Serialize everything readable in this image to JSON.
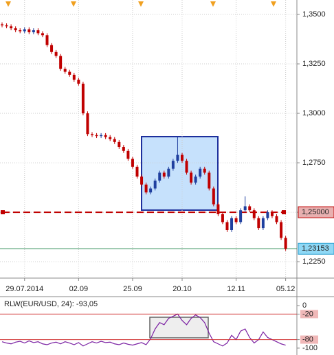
{
  "chart_data": [
    {
      "type": "candlestick",
      "up_color": "#1f3f9f",
      "down_color": "#c00000",
      "grid": true,
      "open": [
        1.345,
        1.3445,
        1.344,
        1.343,
        1.342,
        1.3415,
        1.3425,
        1.341,
        1.342,
        1.3405,
        1.3395,
        1.3345,
        1.331,
        1.329,
        1.3225,
        1.321,
        1.3195,
        1.317,
        1.315,
        1.3,
        1.2895,
        1.289,
        1.2885,
        1.289,
        1.288,
        1.287,
        1.2855,
        1.283,
        1.281,
        1.277,
        1.273,
        1.268,
        1.264,
        1.26,
        1.262,
        1.266,
        1.27,
        1.268,
        1.272,
        1.276,
        1.279,
        1.276,
        1.27,
        1.265,
        1.268,
        1.272,
        1.27,
        1.262,
        1.254,
        1.249,
        1.245,
        1.241,
        1.247,
        1.245,
        1.251,
        1.253,
        1.251,
        1.247,
        1.242,
        1.247,
        1.25,
        1.248,
        1.245,
        1.237
      ],
      "high": [
        1.346,
        1.3455,
        1.345,
        1.344,
        1.343,
        1.3435,
        1.3435,
        1.343,
        1.343,
        1.3415,
        1.3405,
        1.3355,
        1.332,
        1.33,
        1.3235,
        1.322,
        1.3205,
        1.318,
        1.316,
        1.301,
        1.2905,
        1.29,
        1.29,
        1.29,
        1.289,
        1.288,
        1.2865,
        1.284,
        1.282,
        1.278,
        1.274,
        1.269,
        1.265,
        1.263,
        1.267,
        1.271,
        1.271,
        1.273,
        1.277,
        1.288,
        1.28,
        1.277,
        1.271,
        1.269,
        1.273,
        1.273,
        1.271,
        1.263,
        1.255,
        1.25,
        1.246,
        1.248,
        1.248,
        1.252,
        1.258,
        1.254,
        1.252,
        1.248,
        1.248,
        1.251,
        1.251,
        1.249,
        1.246,
        1.238
      ],
      "low": [
        1.3435,
        1.343,
        1.342,
        1.341,
        1.3405,
        1.3405,
        1.34,
        1.34,
        1.3395,
        1.3385,
        1.3335,
        1.33,
        1.328,
        1.3215,
        1.32,
        1.3185,
        1.316,
        1.314,
        1.299,
        1.2885,
        1.288,
        1.2875,
        1.2875,
        1.287,
        1.286,
        1.2845,
        1.282,
        1.28,
        1.276,
        1.272,
        1.267,
        1.263,
        1.259,
        1.259,
        1.261,
        1.265,
        1.267,
        1.267,
        1.271,
        1.275,
        1.275,
        1.269,
        1.264,
        1.264,
        1.267,
        1.269,
        1.261,
        1.253,
        1.248,
        1.244,
        1.24,
        1.24,
        1.244,
        1.244,
        1.25,
        1.25,
        1.246,
        1.241,
        1.241,
        1.246,
        1.247,
        1.244,
        1.236,
        1.2305
      ],
      "close": [
        1.3445,
        1.344,
        1.343,
        1.342,
        1.3415,
        1.3425,
        1.341,
        1.342,
        1.3405,
        1.3395,
        1.3345,
        1.331,
        1.329,
        1.3225,
        1.321,
        1.3195,
        1.317,
        1.315,
        1.3,
        1.2895,
        1.289,
        1.2885,
        1.289,
        1.288,
        1.287,
        1.2855,
        1.283,
        1.281,
        1.277,
        1.273,
        1.268,
        1.264,
        1.26,
        1.262,
        1.266,
        1.27,
        1.268,
        1.272,
        1.276,
        1.279,
        1.276,
        1.27,
        1.265,
        1.268,
        1.272,
        1.27,
        1.262,
        1.254,
        1.249,
        1.245,
        1.241,
        1.247,
        1.245,
        1.251,
        1.253,
        1.251,
        1.247,
        1.242,
        1.247,
        1.25,
        1.248,
        1.245,
        1.237,
        1.2315
      ],
      "xlim": [
        -0.46,
        65.5
      ],
      "xticks": [
        {
          "value": 5,
          "label": "29.07.2014"
        },
        {
          "value": 17,
          "label": "02.09"
        },
        {
          "value": 29,
          "label": "25.09"
        },
        {
          "value": 40,
          "label": "20.10"
        },
        {
          "value": 52,
          "label": "12.11"
        },
        {
          "value": 63,
          "label": "05.12"
        }
      ],
      "ylim": [
        1.2167,
        1.3573
      ],
      "yticks": [
        {
          "value": 1.35,
          "label": "1,3500"
        },
        {
          "value": 1.325,
          "label": "1,3250"
        },
        {
          "value": 1.3,
          "label": "1,3000"
        },
        {
          "value": 1.275,
          "label": "1,2750"
        },
        {
          "value": 1.25,
          "label": "1,2500"
        },
        {
          "value": 1.225,
          "label": "1,2250"
        }
      ],
      "level_line": {
        "value": 1.25,
        "label": "1,25000",
        "color": "#c00000"
      },
      "last_price": {
        "value": 1.23153,
        "label": "1,23153",
        "color": "#2e8b57"
      }
    },
    {
      "type": "line",
      "title": "RLW(EUR/USD, 24): -93,05",
      "color": "#7a1fa2",
      "values": [
        -85,
        -88,
        -90,
        -86,
        -84,
        -88,
        -83,
        -87,
        -85,
        -90,
        -92,
        -88,
        -86,
        -90,
        -85,
        -88,
        -92,
        -87,
        -95,
        -90,
        -85,
        -88,
        -84,
        -87,
        -86,
        -90,
        -92,
        -88,
        -91,
        -93,
        -90,
        -87,
        -92,
        -78,
        -55,
        -40,
        -45,
        -30,
        -25,
        -20,
        -35,
        -45,
        -30,
        -22,
        -28,
        -40,
        -65,
        -85,
        -90,
        -95,
        -88,
        -70,
        -80,
        -60,
        -55,
        -75,
        -88,
        -80,
        -62,
        -75,
        -80,
        -85,
        -90,
        -93.05
      ],
      "ylim": [
        -113,
        13
      ],
      "yticks": [
        0,
        -20,
        -80,
        -100
      ],
      "levels": [
        -20,
        -80
      ],
      "level_color": "#d03030"
    }
  ]
}
